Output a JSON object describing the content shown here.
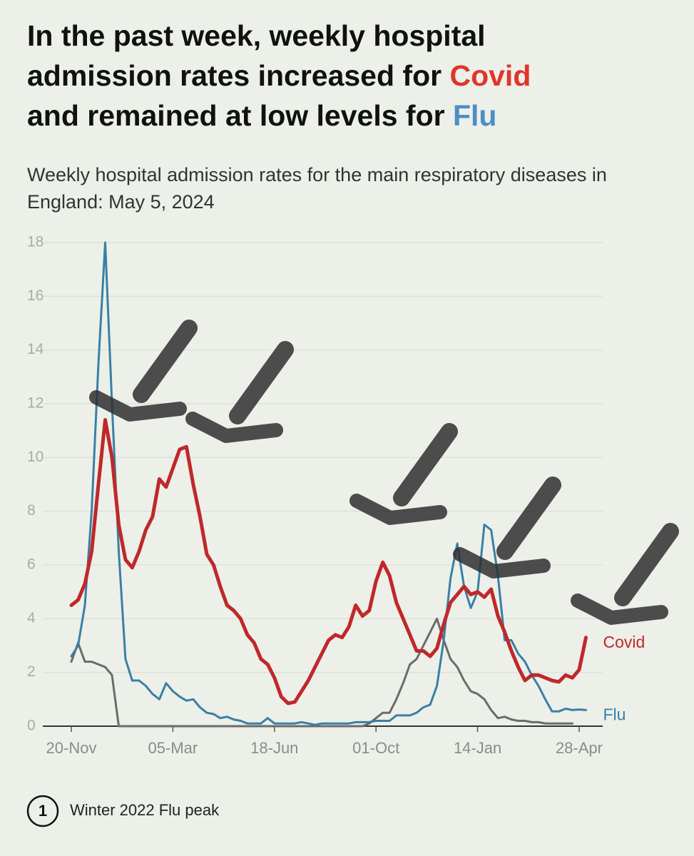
{
  "chart_data": {
    "type": "line",
    "title_parts": [
      "In the past week, weekly hospital",
      "admission rates increased for ",
      "Covid",
      "and remained at low levels for ",
      "Flu"
    ],
    "subtitle": "Weekly hospital admission rates for the main respiratory diseases in England: May 5, 2024",
    "categories": [
      "20-Nov",
      null,
      null,
      null,
      null,
      null,
      null,
      null,
      null,
      null,
      null,
      null,
      null,
      null,
      null,
      "05-Mar",
      null,
      null,
      null,
      null,
      null,
      null,
      null,
      null,
      null,
      null,
      null,
      null,
      null,
      null,
      "18-Jun",
      null,
      null,
      null,
      null,
      null,
      null,
      null,
      null,
      null,
      null,
      null,
      null,
      null,
      null,
      "01-Oct",
      null,
      null,
      null,
      null,
      null,
      null,
      null,
      null,
      null,
      null,
      null,
      null,
      null,
      null,
      "14-Jan",
      null,
      null,
      null,
      null,
      null,
      null,
      null,
      null,
      null,
      null,
      null,
      null,
      null,
      null,
      "28-Apr",
      null
    ],
    "series": [
      {
        "name": "Covid",
        "color": "#c0282a",
        "values": [
          4.5,
          4.7,
          5.3,
          6.5,
          9.0,
          11.4,
          10.0,
          7.5,
          6.2,
          5.9,
          6.5,
          7.3,
          7.8,
          9.2,
          8.9,
          9.6,
          10.3,
          10.4,
          9.0,
          7.8,
          6.4,
          6.0,
          5.2,
          4.5,
          4.3,
          4.0,
          3.4,
          3.1,
          2.5,
          2.3,
          1.8,
          1.1,
          0.85,
          0.9,
          1.3,
          1.7,
          2.2,
          2.7,
          3.2,
          3.4,
          3.3,
          3.7,
          4.5,
          4.1,
          4.3,
          5.4,
          6.1,
          5.6,
          4.6,
          4.0,
          3.4,
          2.8,
          2.8,
          2.6,
          2.9,
          3.8,
          4.6,
          4.9,
          5.2,
          4.9,
          5.0,
          4.8,
          5.1,
          4.1,
          3.5,
          2.8,
          2.2,
          1.7,
          1.9,
          1.9,
          1.8,
          1.7,
          1.65,
          1.9,
          1.8,
          2.1,
          3.3
        ]
      },
      {
        "name": "Flu",
        "color": "#3a7fa8",
        "values": [
          2.6,
          3.0,
          4.5,
          8.0,
          13.5,
          18.0,
          12.0,
          6.5,
          2.5,
          1.7,
          1.7,
          1.5,
          1.2,
          1.0,
          1.6,
          1.3,
          1.1,
          0.95,
          1.0,
          0.7,
          0.5,
          0.45,
          0.3,
          0.35,
          0.25,
          0.2,
          0.1,
          0.1,
          0.1,
          0.3,
          0.1,
          0.1,
          0.1,
          0.1,
          0.15,
          0.1,
          0.05,
          0.1,
          0.1,
          0.1,
          0.1,
          0.1,
          0.15,
          0.15,
          0.15,
          0.2,
          0.2,
          0.2,
          0.4,
          0.4,
          0.4,
          0.5,
          0.7,
          0.8,
          1.5,
          3.2,
          5.5,
          6.8,
          5.2,
          4.4,
          5.0,
          7.5,
          7.3,
          5.6,
          3.2,
          3.2,
          2.7,
          2.4,
          1.9,
          1.5,
          1.0,
          0.55,
          0.55,
          0.65,
          0.6,
          0.62,
          0.6
        ]
      },
      {
        "color": "#6b6b6b",
        "values": [
          2.4,
          3.1,
          2.4,
          2.4,
          2.3,
          2.2,
          1.9,
          0,
          0,
          0,
          0,
          0,
          0,
          0,
          0,
          0,
          0,
          0,
          0,
          0,
          0,
          0,
          0,
          0,
          0,
          0,
          0,
          0,
          0,
          0,
          0,
          0,
          0,
          0,
          0,
          0,
          0,
          0,
          0,
          0,
          0,
          0,
          0,
          0,
          0.1,
          0.3,
          0.5,
          0.5,
          1.0,
          1.6,
          2.3,
          2.5,
          3.0,
          3.5,
          4.0,
          3.2,
          2.5,
          2.2,
          1.7,
          1.3,
          1.2,
          1.0,
          0.6,
          0.3,
          0.35,
          0.25,
          0.2,
          0.2,
          0.15,
          0.15,
          0.1,
          0.1,
          0.1,
          0.1,
          0.1,
          null,
          null
        ]
      }
    ],
    "ylim": [
      0,
      18
    ],
    "yticks": [
      0,
      2,
      4,
      6,
      8,
      10,
      12,
      14,
      16,
      18
    ],
    "grid": true,
    "annotation": {
      "number": "1",
      "text": "Winter 2022 Flu peak"
    }
  }
}
